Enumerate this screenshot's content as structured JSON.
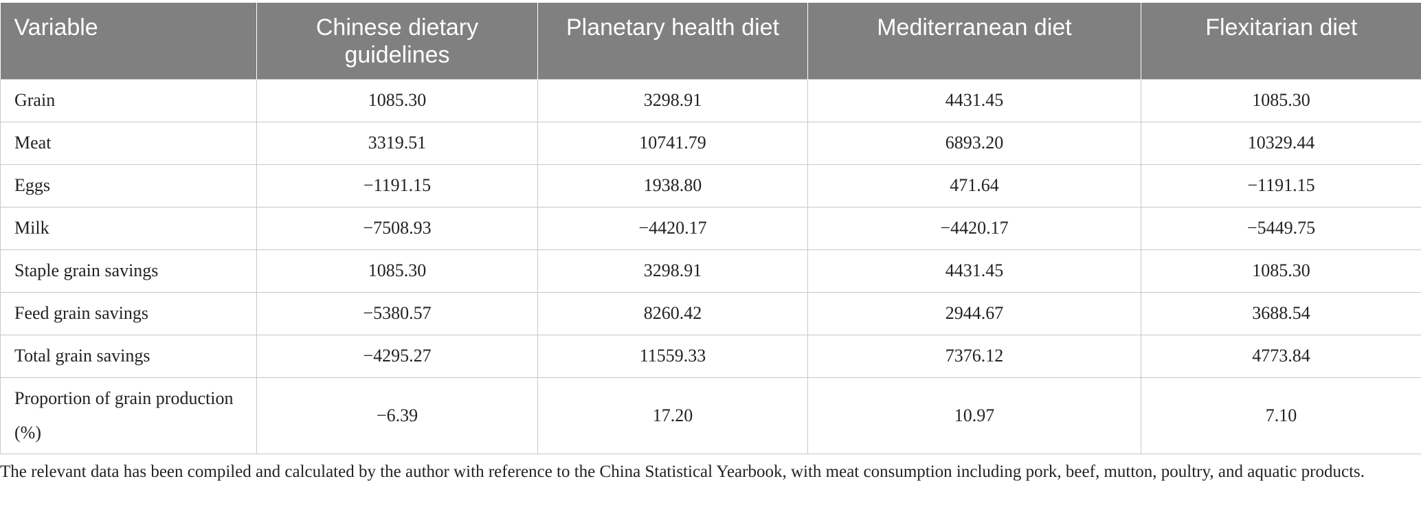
{
  "table": {
    "headers": [
      "Variable",
      "Chinese dietary guidelines",
      "Planetary health diet",
      "Mediterranean diet",
      "Flexitarian diet"
    ],
    "rows": [
      [
        "Grain",
        "1085.30",
        "3298.91",
        "4431.45",
        "1085.30"
      ],
      [
        "Meat",
        "3319.51",
        "10741.79",
        "6893.20",
        "10329.44"
      ],
      [
        "Eggs",
        "−1191.15",
        "1938.80",
        "471.64",
        "−1191.15"
      ],
      [
        "Milk",
        "−7508.93",
        "−4420.17",
        "−4420.17",
        "−5449.75"
      ],
      [
        "Staple grain savings",
        "1085.30",
        "3298.91",
        "4431.45",
        "1085.30"
      ],
      [
        "Feed grain savings",
        "−5380.57",
        "8260.42",
        "2944.67",
        "3688.54"
      ],
      [
        "Total grain savings",
        "−4295.27",
        "11559.33",
        "7376.12",
        "4773.84"
      ],
      [
        "Proportion of grain production (%)",
        "−6.39",
        "17.20",
        "10.97",
        "7.10"
      ]
    ]
  },
  "footnote": "The relevant data has been compiled and calculated by the author with reference to the China Statistical Yearbook, with meat consumption including pork, beef, mutton, poultry, and aquatic products.",
  "colors": {
    "header_bg": "#808080",
    "header_text": "#ffffff",
    "grid": "#c8c8c8",
    "body_text": "#222222"
  }
}
